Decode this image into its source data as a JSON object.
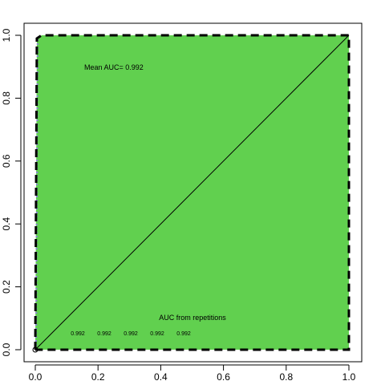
{
  "chart_data": {
    "type": "line",
    "title": "",
    "xlabel": "",
    "ylabel": "",
    "xlim": [
      0,
      1
    ],
    "ylim": [
      0,
      1
    ],
    "x_ticks": [
      "0.0",
      "0.2",
      "0.4",
      "0.6",
      "0.8",
      "1.0"
    ],
    "y_ticks": [
      "0.0",
      "0.2",
      "0.4",
      "0.6",
      "0.8",
      "1.0"
    ],
    "fill_color": "#61D04F",
    "mean_auc_text": "Mean AUC= 0.992",
    "repetitions_title": "AUC from repetitions",
    "repetition_aucs": [
      "0.992",
      "0.992",
      "0.992",
      "0.992",
      "0.992"
    ],
    "series": [
      {
        "style": "dashed",
        "color": "#000000",
        "points": [
          [
            0,
            0
          ],
          [
            0.005,
            0.99
          ],
          [
            0.02,
            1.0
          ],
          [
            1.0,
            1.0
          ],
          [
            1.0,
            0.0
          ],
          [
            0,
            0
          ]
        ]
      },
      {
        "style": "solid",
        "color": "#000000",
        "points": [
          [
            0,
            0
          ],
          [
            1,
            1
          ]
        ]
      }
    ],
    "grid": false,
    "legend": "none"
  }
}
